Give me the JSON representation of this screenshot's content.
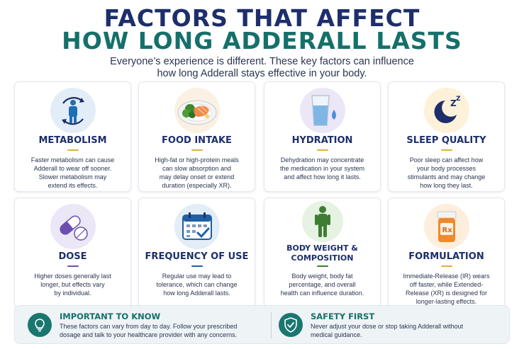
{
  "header": {
    "title_line1": "FACTORS THAT AFFECT",
    "title_line2": "HOW LONG ADDERALL LASTS",
    "subtitle_line1": "Everyone’s experience is different. These key factors can influence",
    "subtitle_line2": "how long Adderall stays effective in your body."
  },
  "colors": {
    "navy": "#1d2e6b",
    "teal": "#15706b",
    "gold": "#e0b03a",
    "purple": "#6b4fb3"
  },
  "cards": [
    {
      "title": "METABOLISM",
      "icon": "person-cycle-icon",
      "text": [
        "Faster metabolism can cause",
        "Adderall to wear off sooner.",
        "Slower metabolism may",
        "extend its effects."
      ]
    },
    {
      "title": "FOOD INTAKE",
      "icon": "food-plate-icon",
      "text": [
        "High-fat or high-protein meals",
        "can slow absorption and",
        "may delay onset or extend",
        "duration (especially XR)."
      ]
    },
    {
      "title": "HYDRATION",
      "icon": "water-glass-icon",
      "text": [
        "Dehydration may concentrate",
        "the medication in your system",
        "and affect how long it lasts."
      ]
    },
    {
      "title": "SLEEP QUALITY",
      "icon": "moon-sleep-icon",
      "text": [
        "Poor sleep can affect how",
        "your body processes",
        "stimulants and may change",
        "how long they last."
      ]
    },
    {
      "title": "DOSE",
      "icon": "pill-capsule-icon",
      "text": [
        "Higher doses generally last",
        "longer, but effects vary",
        "by individual."
      ]
    },
    {
      "title": "FREQUENCY OF USE",
      "icon": "calendar-check-icon",
      "text": [
        "Regular use may lead to",
        "tolerance, which can change",
        "how long Adderall lasts."
      ]
    },
    {
      "title_line1": "BODY WEIGHT &",
      "title_line2": "COMPOSITION",
      "icon": "body-figure-icon",
      "text": [
        "Body weight, body fat",
        "percentage, and overall",
        "health can influence duration."
      ]
    },
    {
      "title": "FORMULATION",
      "icon": "pill-bottle-icon",
      "text": [
        "Immediate-Release (IR) wears",
        "off faster, while Extended-",
        "Release (XR) is designed for",
        "longer-lasting effects."
      ]
    }
  ],
  "bottom": {
    "important_title": "IMPORTANT TO KNOW",
    "important_line1": "These factors can vary from day to day. Follow your prescribed",
    "important_line2": "dosage and talk to your healthcare provider with any concerns.",
    "safety_title": "SAFETY FIRST",
    "safety_line1": "Never adjust your dose or stop taking Adderall without",
    "safety_line2": "medical guidance."
  }
}
